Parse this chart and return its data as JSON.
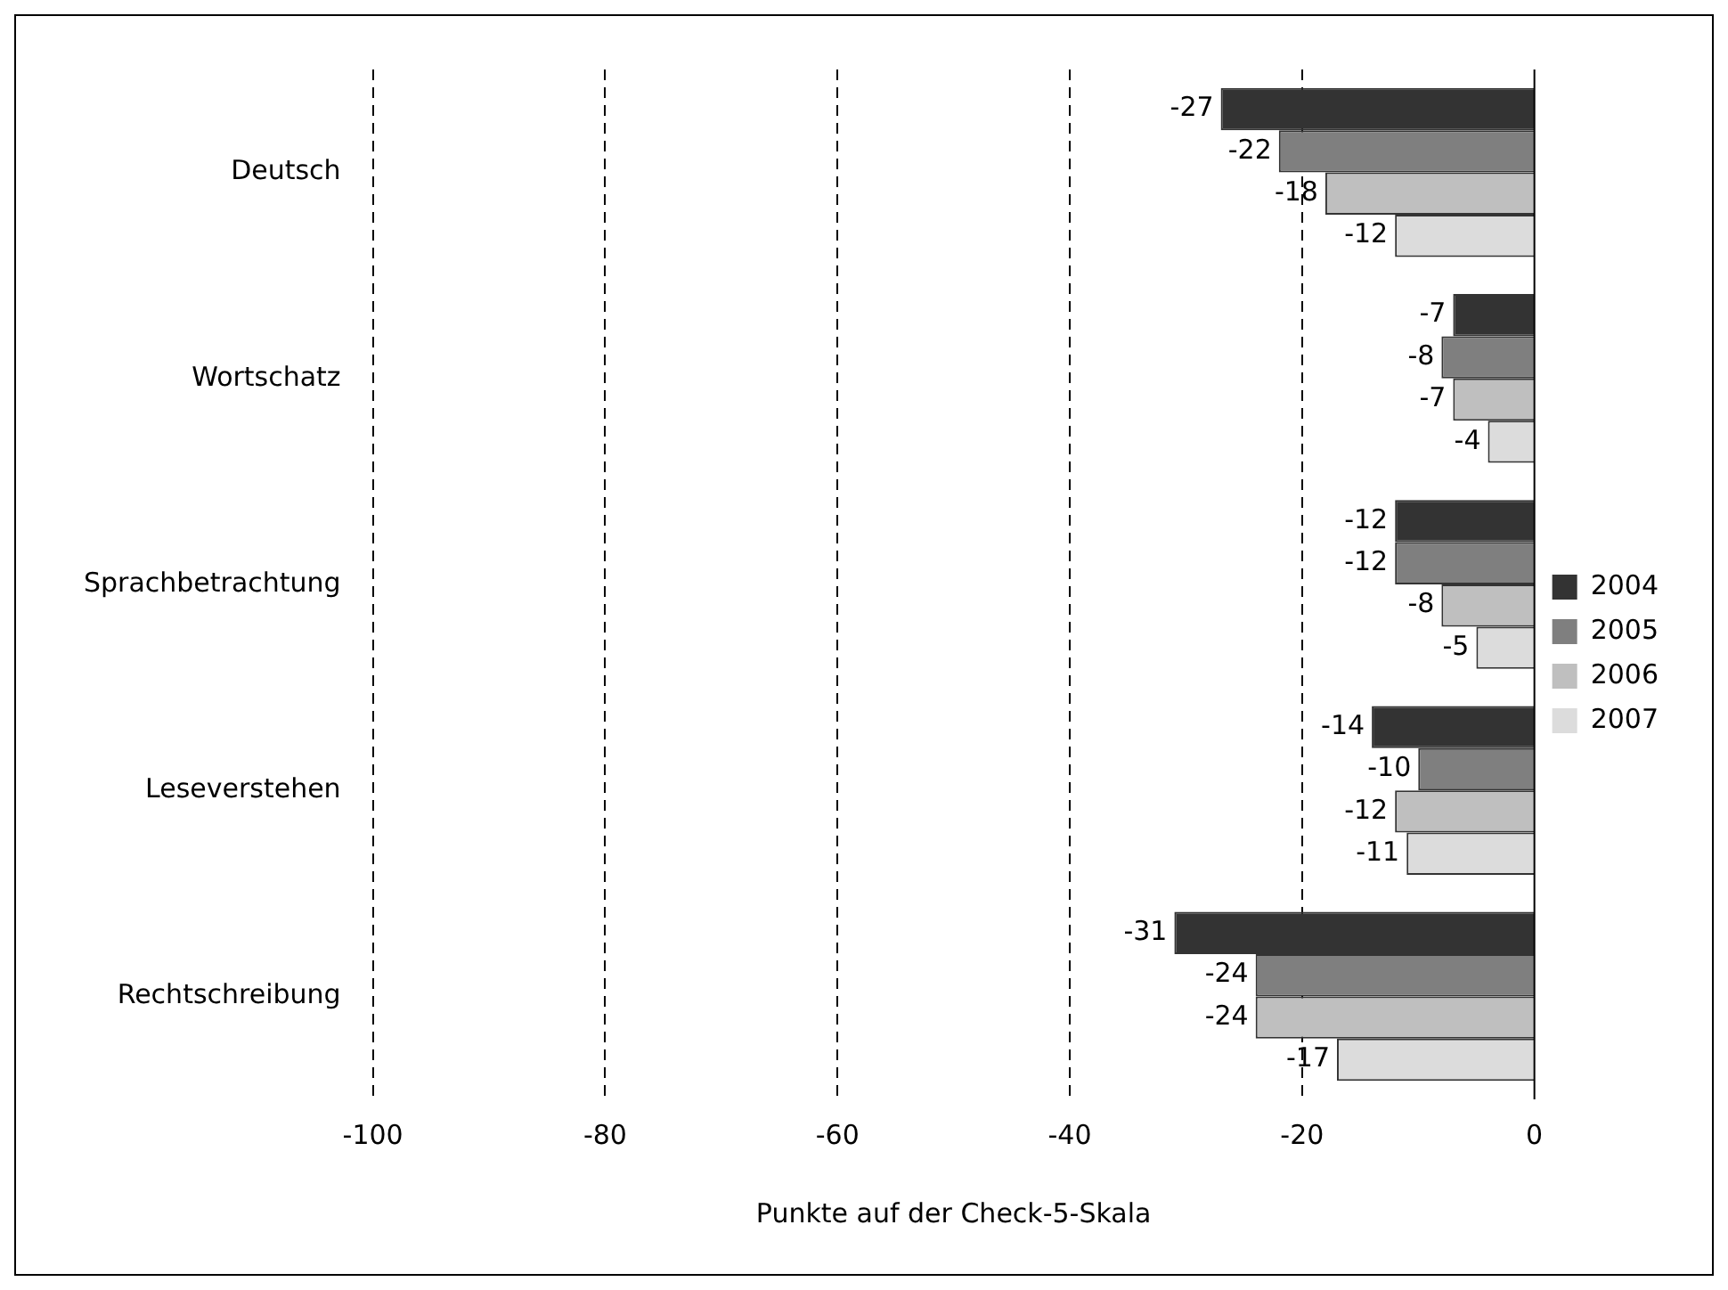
{
  "chart_data": {
    "type": "bar",
    "orientation": "horizontal",
    "categories": [
      "Deutsch",
      "Wortschatz",
      "Sprachbetrachtung",
      "Leseverstehen",
      "Rechtschreibung"
    ],
    "series": [
      {
        "name": "2004",
        "color": "#333333",
        "values": [
          -27,
          -7,
          -12,
          -14,
          -31
        ]
      },
      {
        "name": "2005",
        "color": "#7f7f7f",
        "values": [
          -22,
          -8,
          -12,
          -10,
          -24
        ]
      },
      {
        "name": "2006",
        "color": "#bfbfbf",
        "values": [
          -18,
          -7,
          -8,
          -12,
          -24
        ]
      },
      {
        "name": "2007",
        "color": "#dcdcdc",
        "values": [
          -12,
          -4,
          -5,
          -11,
          -17
        ]
      }
    ],
    "xlim": [
      -100,
      0
    ],
    "xticks": [
      -100,
      -80,
      -60,
      -40,
      -20,
      0
    ],
    "xlabel": "Punkte auf der Check-5-Skala",
    "grid": "x",
    "legend": "right",
    "data_labels": true
  }
}
